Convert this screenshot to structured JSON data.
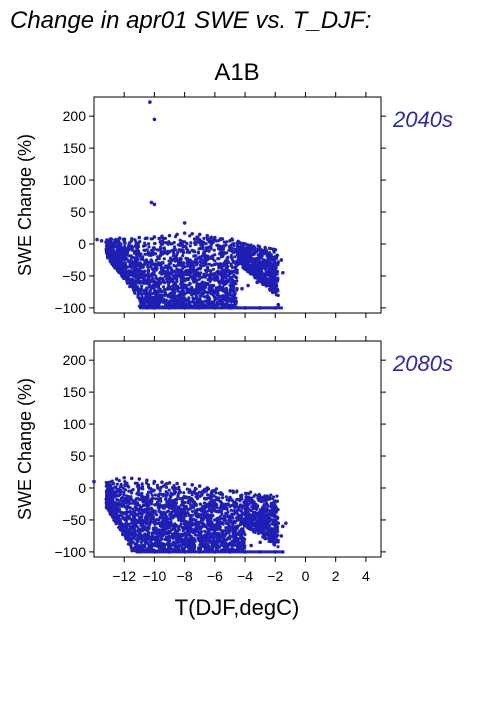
{
  "title": "Change in apr01 SWE vs. T_DJF:",
  "subtitle": "A1B",
  "colors": {
    "points": "#1f1fb4",
    "panel_label": "#2a2aa8",
    "axis": "#000000"
  },
  "chart_data": [
    {
      "type": "scatter",
      "panel_label": "2040s",
      "ylabel": "SWE Change (%)",
      "xlabel": "",
      "xlim": [
        -14,
        5
      ],
      "ylim": [
        -108,
        230
      ],
      "x_ticks": [
        -12,
        -10,
        -8,
        -6,
        -4,
        -2,
        0,
        2,
        4
      ],
      "y_ticks": [
        -100,
        -50,
        0,
        50,
        100,
        150,
        200
      ],
      "points": [
        [
          -10.3,
          222
        ],
        [
          -10.0,
          195
        ],
        [
          -10.2,
          65
        ],
        [
          -10.0,
          62
        ],
        [
          -8.0,
          33
        ],
        [
          -13.8,
          7
        ],
        [
          -13.5,
          5
        ],
        [
          -13.2,
          3
        ],
        [
          -12.9,
          8
        ],
        [
          -12.6,
          6
        ],
        [
          -12.3,
          9
        ],
        [
          -12.0,
          4
        ],
        [
          -11.5,
          8
        ],
        [
          -11.0,
          10
        ],
        [
          -10.5,
          9
        ],
        [
          -10.0,
          11
        ],
        [
          -9.5,
          12
        ],
        [
          -9.0,
          13
        ],
        [
          -8.5,
          15
        ],
        [
          -8.0,
          17
        ],
        [
          -7.5,
          16
        ],
        [
          -7.0,
          15
        ],
        [
          -6.5,
          13
        ],
        [
          -6.0,
          10
        ],
        [
          -5.5,
          8
        ],
        [
          -5.0,
          5
        ],
        [
          -4.5,
          2
        ],
        [
          -4.0,
          0
        ],
        [
          -12.8,
          -10
        ],
        [
          -12.5,
          -20
        ],
        [
          -12.0,
          -30
        ],
        [
          -11.8,
          -45
        ],
        [
          -11.5,
          -60
        ],
        [
          -11.2,
          -70
        ],
        [
          -11.0,
          -85
        ],
        [
          -10.8,
          -95
        ],
        [
          -10.5,
          -100
        ],
        [
          -10.0,
          -100
        ],
        [
          -9.0,
          -100
        ],
        [
          -8.0,
          -100
        ],
        [
          -7.0,
          -100
        ],
        [
          -6.0,
          -100
        ],
        [
          -5.0,
          -100
        ],
        [
          -4.0,
          -100
        ],
        [
          -3.0,
          -100
        ],
        [
          -2.0,
          -100
        ],
        [
          -1.8,
          -95
        ],
        [
          -3.5,
          -5
        ],
        [
          -3.0,
          -10
        ],
        [
          -2.5,
          -15
        ],
        [
          -2.0,
          -20
        ],
        [
          -1.6,
          -25
        ],
        [
          -1.5,
          -45
        ],
        [
          -2.2,
          -50
        ],
        [
          -2.8,
          -55
        ],
        [
          -3.2,
          -60
        ],
        [
          -3.8,
          -65
        ],
        [
          -4.2,
          -70
        ],
        [
          -4.8,
          -80
        ],
        [
          -5.2,
          -90
        ]
      ]
    },
    {
      "type": "scatter",
      "panel_label": "2080s",
      "ylabel": "SWE Change (%)",
      "xlabel": "T(DJF,degC)",
      "xlim": [
        -14,
        5
      ],
      "ylim": [
        -108,
        230
      ],
      "x_ticks": [
        -12,
        -10,
        -8,
        -6,
        -4,
        -2,
        0,
        2,
        4
      ],
      "y_ticks": [
        -100,
        -50,
        0,
        50,
        100,
        150,
        200
      ],
      "points": [
        [
          -14.0,
          10
        ],
        [
          -13.0,
          6
        ],
        [
          -12.5,
          14
        ],
        [
          -12.0,
          16
        ],
        [
          -11.5,
          15
        ],
        [
          -11.0,
          14
        ],
        [
          -10.5,
          12
        ],
        [
          -10.0,
          10
        ],
        [
          -9.5,
          9
        ],
        [
          -9.0,
          8
        ],
        [
          -8.5,
          7
        ],
        [
          -8.0,
          6
        ],
        [
          -7.5,
          5
        ],
        [
          -7.0,
          3
        ],
        [
          -6.5,
          0
        ],
        [
          -6.0,
          -5
        ],
        [
          -5.5,
          -10
        ],
        [
          -5.0,
          -15
        ],
        [
          -4.8,
          -5
        ],
        [
          -12.8,
          -20
        ],
        [
          -13.0,
          -35
        ],
        [
          -12.5,
          -45
        ],
        [
          -12.2,
          -60
        ],
        [
          -11.8,
          -70
        ],
        [
          -11.5,
          -80
        ],
        [
          -11.2,
          -90
        ],
        [
          -11.0,
          -100
        ],
        [
          -10.0,
          -100
        ],
        [
          -9.0,
          -100
        ],
        [
          -8.0,
          -100
        ],
        [
          -7.0,
          -100
        ],
        [
          -6.0,
          -100
        ],
        [
          -5.0,
          -100
        ],
        [
          -4.0,
          -100
        ],
        [
          -3.0,
          -100
        ],
        [
          -2.0,
          -100
        ],
        [
          -1.5,
          -100
        ],
        [
          -3.8,
          -35
        ],
        [
          -3.2,
          -40
        ],
        [
          -2.8,
          -45
        ],
        [
          -2.2,
          -50
        ],
        [
          -1.8,
          -55
        ],
        [
          -1.5,
          -60
        ],
        [
          -1.3,
          -55
        ],
        [
          -1.6,
          -75
        ],
        [
          -2.4,
          -80
        ],
        [
          -3.0,
          -85
        ],
        [
          -3.6,
          -90
        ],
        [
          -4.2,
          -95
        ]
      ]
    }
  ]
}
